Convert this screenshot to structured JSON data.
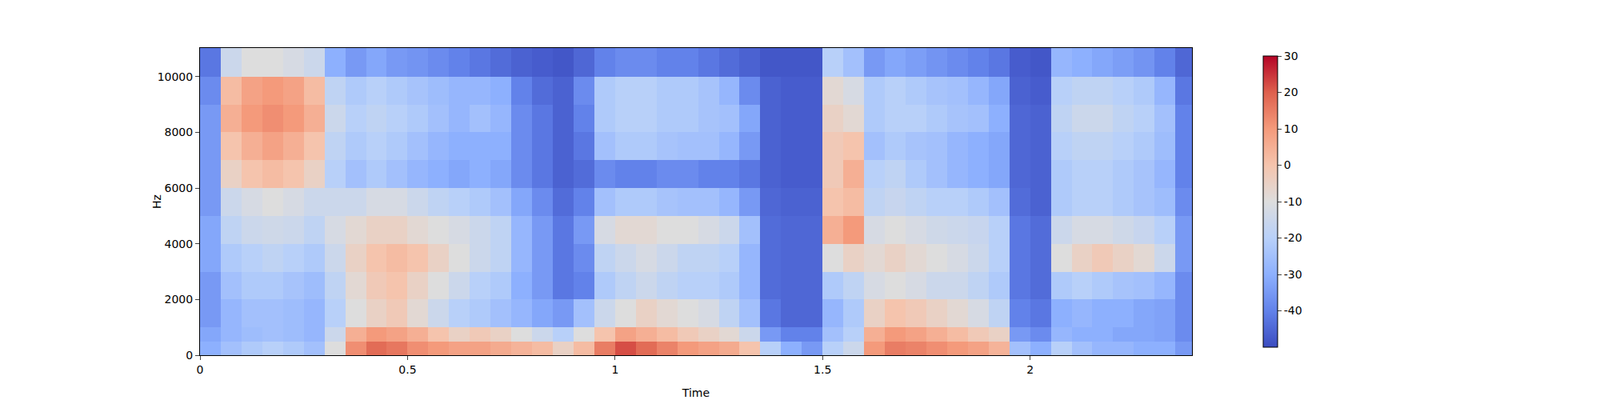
{
  "chart_data": {
    "type": "heatmap",
    "x_label": "Time",
    "y_label": "Hz",
    "x": [
      0,
      0.05,
      0.1,
      0.15,
      0.2,
      0.25,
      0.3,
      0.35,
      0.4,
      0.45,
      0.5,
      0.55,
      0.6,
      0.65,
      0.7,
      0.75,
      0.8,
      0.85,
      0.9,
      0.95,
      1,
      1.05,
      1.1,
      1.15,
      1.2,
      1.25,
      1.3,
      1.35,
      1.4,
      1.45,
      1.5,
      1.55,
      1.6,
      1.65,
      1.7,
      1.75,
      1.8,
      1.85,
      1.9,
      1.95,
      2,
      2.05,
      2.1,
      2.15,
      2.2,
      2.25,
      2.3,
      2.35,
      2.39
    ],
    "y": [
      0,
      500,
      1000,
      2000,
      3000,
      4000,
      5000,
      6000,
      7000,
      8000,
      9000,
      10000,
      11025
    ],
    "z": [
      [
        -30,
        -25,
        -22,
        -20,
        -22,
        -25,
        -10,
        12,
        18,
        16,
        12,
        10,
        8,
        8,
        6,
        4,
        2,
        -5,
        2,
        15,
        22,
        18,
        14,
        10,
        8,
        6,
        0,
        -20,
        -30,
        -35,
        -20,
        -15,
        10,
        15,
        14,
        12,
        10,
        8,
        4,
        -25,
        -30,
        -20,
        -25,
        -28,
        -28,
        -30,
        -30,
        -35
      ],
      [
        -32,
        -28,
        -26,
        -25,
        -26,
        -28,
        -15,
        5,
        10,
        8,
        5,
        0,
        -5,
        -2,
        -5,
        -10,
        -15,
        -20,
        -10,
        0,
        8,
        5,
        2,
        -2,
        -5,
        -8,
        -15,
        -35,
        -40,
        -40,
        -25,
        -20,
        5,
        10,
        8,
        5,
        2,
        -2,
        -5,
        -35,
        -38,
        -28,
        -30,
        -30,
        -32,
        -32,
        -33,
        -38
      ],
      [
        -35,
        -28,
        -25,
        -25,
        -26,
        -28,
        -20,
        -10,
        -5,
        -2,
        -8,
        -15,
        -20,
        -22,
        -25,
        -28,
        -32,
        -35,
        -25,
        -15,
        -10,
        -5,
        -8,
        -10,
        -12,
        -18,
        -25,
        -42,
        -45,
        -45,
        -28,
        -22,
        -5,
        0,
        -2,
        -5,
        -8,
        -12,
        -18,
        -40,
        -42,
        -30,
        -28,
        -30,
        -30,
        -32,
        -33,
        -38
      ],
      [
        -35,
        -25,
        -22,
        -22,
        -24,
        -26,
        -18,
        -8,
        -2,
        0,
        -5,
        -10,
        -15,
        -20,
        -22,
        -30,
        -35,
        -42,
        -40,
        -22,
        -18,
        -15,
        -18,
        -20,
        -20,
        -22,
        -28,
        -44,
        -45,
        -45,
        -22,
        -18,
        -12,
        -10,
        -12,
        -15,
        -15,
        -18,
        -22,
        -42,
        -44,
        -22,
        -20,
        -22,
        -24,
        -25,
        -28,
        -38
      ],
      [
        -32,
        -22,
        -20,
        -18,
        -20,
        -22,
        -15,
        -5,
        0,
        2,
        0,
        -5,
        -10,
        -15,
        -18,
        -28,
        -35,
        -42,
        -38,
        -18,
        -15,
        -12,
        -15,
        -18,
        -18,
        -20,
        -28,
        -44,
        -45,
        -45,
        -10,
        -5,
        -8,
        -5,
        -8,
        -10,
        -12,
        -15,
        -20,
        -42,
        -44,
        -10,
        -5,
        -2,
        -5,
        -8,
        -15,
        -35
      ],
      [
        -32,
        -18,
        -15,
        -14,
        -15,
        -18,
        -12,
        -8,
        -5,
        -5,
        -8,
        -10,
        -12,
        -15,
        -18,
        -28,
        -35,
        -42,
        -35,
        -12,
        -8,
        -8,
        -10,
        -10,
        -12,
        -15,
        -25,
        -44,
        -45,
        -45,
        5,
        10,
        -12,
        -10,
        -12,
        -14,
        -15,
        -16,
        -20,
        -42,
        -44,
        -15,
        -12,
        -12,
        -14,
        -16,
        -20,
        -35
      ],
      [
        -35,
        -15,
        -12,
        -10,
        -12,
        -15,
        -15,
        -15,
        -12,
        -12,
        -15,
        -18,
        -20,
        -22,
        -25,
        -32,
        -38,
        -44,
        -40,
        -25,
        -22,
        -22,
        -24,
        -25,
        -25,
        -28,
        -35,
        -45,
        -46,
        -46,
        0,
        2,
        -18,
        -16,
        -18,
        -20,
        -20,
        -22,
        -25,
        -44,
        -46,
        -22,
        -20,
        -20,
        -22,
        -24,
        -26,
        -38
      ],
      [
        -35,
        -5,
        0,
        2,
        0,
        -5,
        -20,
        -25,
        -22,
        -25,
        -28,
        -30,
        -32,
        -30,
        -32,
        -38,
        -42,
        -46,
        -44,
        -38,
        -40,
        -40,
        -38,
        -38,
        -40,
        -40,
        -42,
        -46,
        -47,
        -47,
        -2,
        5,
        -20,
        -18,
        -22,
        -25,
        -28,
        -30,
        -32,
        -45,
        -46,
        -22,
        -20,
        -20,
        -22,
        -24,
        -28,
        -40
      ],
      [
        -35,
        0,
        5,
        8,
        5,
        0,
        -18,
        -22,
        -20,
        -22,
        -25,
        -28,
        -30,
        -30,
        -30,
        -38,
        -42,
        -46,
        -42,
        -25,
        -22,
        -22,
        -24,
        -25,
        -25,
        -28,
        -35,
        -46,
        -47,
        -47,
        -2,
        0,
        -25,
        -22,
        -24,
        -25,
        -28,
        -30,
        -32,
        -45,
        -46,
        -20,
        -18,
        -18,
        -20,
        -22,
        -26,
        -40
      ],
      [
        -35,
        5,
        10,
        12,
        10,
        5,
        -15,
        -20,
        -18,
        -20,
        -22,
        -25,
        -28,
        -25,
        -28,
        -38,
        -42,
        -46,
        -40,
        -22,
        -20,
        -20,
        -22,
        -22,
        -24,
        -25,
        -32,
        -46,
        -47,
        -47,
        -5,
        -8,
        -22,
        -20,
        -20,
        -22,
        -24,
        -25,
        -30,
        -45,
        -46,
        -18,
        -15,
        -15,
        -18,
        -20,
        -25,
        -40
      ],
      [
        -38,
        2,
        8,
        10,
        8,
        2,
        -18,
        -22,
        -20,
        -22,
        -24,
        -26,
        -28,
        -28,
        -30,
        -40,
        -44,
        -46,
        -38,
        -22,
        -20,
        -20,
        -22,
        -22,
        -24,
        -28,
        -38,
        -46,
        -47,
        -47,
        -8,
        -12,
        -22,
        -20,
        -22,
        -24,
        -25,
        -28,
        -32,
        -46,
        -47,
        -20,
        -18,
        -18,
        -20,
        -22,
        -28,
        -42
      ],
      [
        -42,
        -15,
        -10,
        -10,
        -12,
        -15,
        -30,
        -35,
        -32,
        -35,
        -36,
        -38,
        -40,
        -42,
        -44,
        -46,
        -47,
        -48,
        -45,
        -40,
        -38,
        -38,
        -40,
        -40,
        -42,
        -44,
        -46,
        -48,
        -48,
        -48,
        -20,
        -25,
        -35,
        -32,
        -34,
        -36,
        -38,
        -40,
        -42,
        -47,
        -48,
        -28,
        -30,
        -32,
        -34,
        -36,
        -40,
        -45
      ]
    ],
    "xlim": [
      0,
      2.39
    ],
    "ylim": [
      0,
      11025
    ],
    "xticks": [
      0,
      0.5,
      1,
      1.5,
      2
    ],
    "yticks": [
      0,
      2000,
      4000,
      6000,
      8000,
      10000
    ],
    "zlim": [
      -50,
      30
    ],
    "zticks": [
      -40,
      -30,
      -20,
      -10,
      0,
      10,
      20,
      30
    ],
    "grid": false
  }
}
